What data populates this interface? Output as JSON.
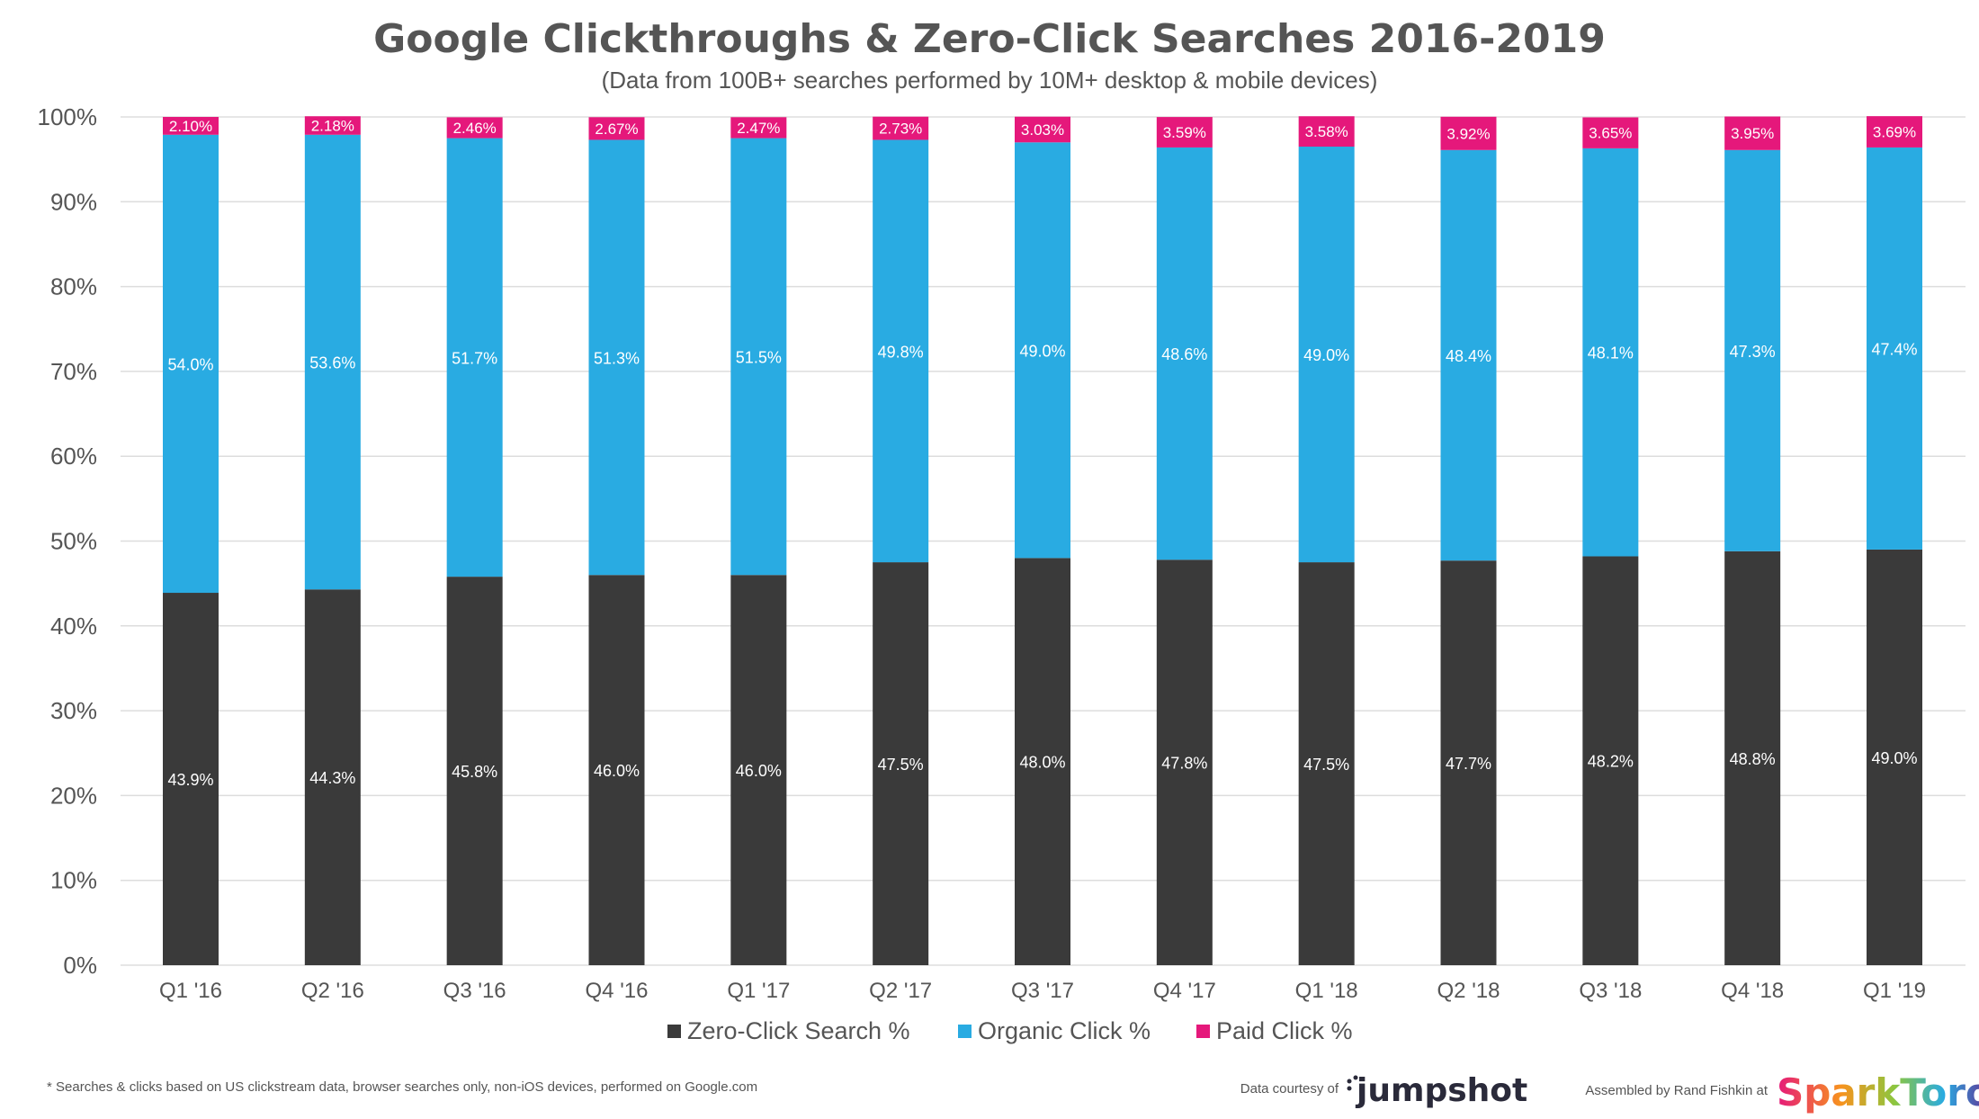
{
  "chart_data": {
    "type": "bar",
    "stacked": true,
    "title": "Google Clickthroughs & Zero-Click Searches 2016-2019",
    "subtitle": "(Data from 100B+ searches performed by 10M+ desktop & mobile devices)",
    "xlabel": "",
    "ylabel": "",
    "ylim": [
      0,
      100
    ],
    "ytick_labels": [
      "0%",
      "10%",
      "20%",
      "30%",
      "40%",
      "50%",
      "60%",
      "70%",
      "80%",
      "90%",
      "100%"
    ],
    "grid": true,
    "legend_position": "bottom",
    "categories": [
      "Q1 '16",
      "Q2 '16",
      "Q3 '16",
      "Q4 '16",
      "Q1 '17",
      "Q2 '17",
      "Q3 '17",
      "Q4 '17",
      "Q1 '18",
      "Q2 '18",
      "Q3 '18",
      "Q4 '18",
      "Q1 '19"
    ],
    "series": [
      {
        "name": "Zero-Click Search %",
        "color": "#3a3a3a",
        "values": [
          43.9,
          44.3,
          45.8,
          46.0,
          46.0,
          47.5,
          48.0,
          47.8,
          47.5,
          47.7,
          48.2,
          48.8,
          49.0
        ],
        "labels": [
          "43.9%",
          "44.3%",
          "45.8%",
          "46.0%",
          "46.0%",
          "47.5%",
          "48.0%",
          "47.8%",
          "47.5%",
          "47.7%",
          "48.2%",
          "48.8%",
          "49.0%"
        ]
      },
      {
        "name": "Organic Click %",
        "color": "#29abe2",
        "values": [
          54.0,
          53.6,
          51.7,
          51.3,
          51.5,
          49.8,
          49.0,
          48.6,
          49.0,
          48.4,
          48.1,
          47.3,
          47.4
        ],
        "labels": [
          "54.0%",
          "53.6%",
          "51.7%",
          "51.3%",
          "51.5%",
          "49.8%",
          "49.0%",
          "48.6%",
          "49.0%",
          "48.4%",
          "48.1%",
          "47.3%",
          "47.4%"
        ]
      },
      {
        "name": "Paid Click %",
        "color": "#e5187b",
        "values": [
          2.1,
          2.18,
          2.46,
          2.67,
          2.47,
          2.73,
          3.03,
          3.59,
          3.58,
          3.92,
          3.65,
          3.95,
          3.69
        ],
        "labels": [
          "2.10%",
          "2.18%",
          "2.46%",
          "2.67%",
          "2.47%",
          "2.73%",
          "3.03%",
          "3.59%",
          "3.58%",
          "3.92%",
          "3.65%",
          "3.95%",
          "3.69%"
        ]
      }
    ]
  },
  "footnote": "* Searches & clicks based on US clickstream data, browser searches only, non-iOS devices, performed on Google.com",
  "credits": {
    "data_courtesy": "Data courtesy of",
    "jumpshot_logo": "jumpshot",
    "assembled_by": "Assembled by Rand Fishkin at",
    "sparktoro_logo": "SparkToro"
  },
  "colors": {
    "grid": "#dddddd",
    "text": "#555555",
    "sparktoro_gradient": [
      "#e5187b",
      "#f7931e",
      "#8cc63f",
      "#29abe2",
      "#662d91"
    ]
  }
}
